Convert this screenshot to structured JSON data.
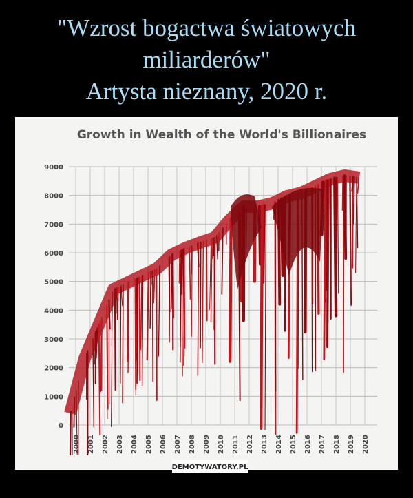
{
  "header": {
    "lines": [
      "\"Wzrost bogactwa światowych",
      "miliarderów\"",
      "Artysta nieznany, 2020 r."
    ]
  },
  "chart": {
    "title": "Growth in Wealth of the World's Billionaires",
    "y_labels": [
      "9000",
      "8000",
      "7000",
      "6000",
      "5000",
      "4000",
      "3000",
      "2000",
      "1000",
      "0"
    ],
    "x_labels": [
      "2000",
      "2001",
      "2002",
      "2003",
      "2004",
      "2005",
      "2006",
      "2007",
      "2008",
      "2009",
      "2010",
      "2011",
      "2012",
      "2013",
      "2014",
      "2015",
      "2016",
      "2017",
      "2018",
      "2019",
      "2020"
    ]
  },
  "watermark": "DEMOTYWATORY.PL"
}
